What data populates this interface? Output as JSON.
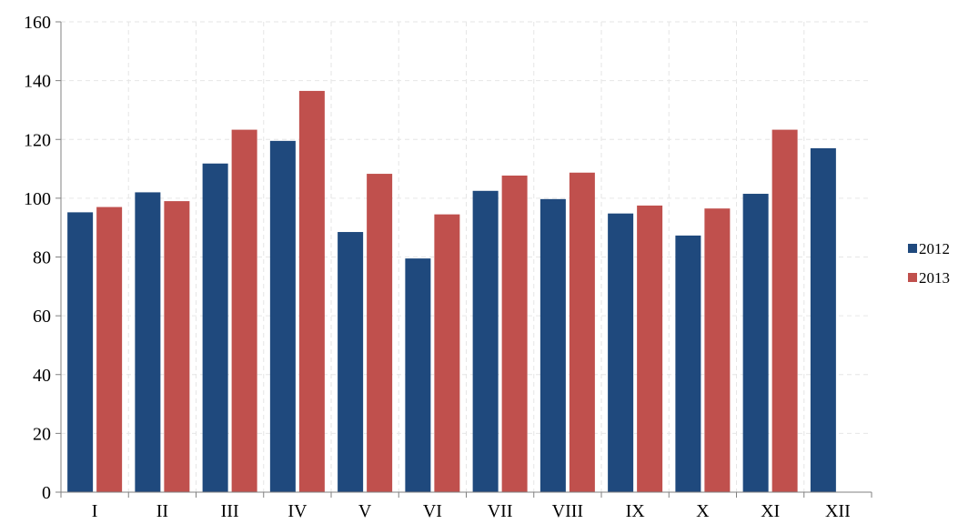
{
  "chart_data": {
    "type": "bar",
    "categories": [
      "I",
      "II",
      "III",
      "IV",
      "V",
      "VI",
      "VII",
      "VIII",
      "IX",
      "X",
      "XI",
      "XII"
    ],
    "series": [
      {
        "name": "2012",
        "color": "#1f497d",
        "values": [
          95.2,
          102.0,
          111.8,
          119.5,
          88.5,
          79.5,
          102.5,
          99.7,
          94.8,
          87.3,
          101.5,
          117.0
        ]
      },
      {
        "name": "2013",
        "color": "#c0504d",
        "values": [
          97.0,
          99.0,
          123.3,
          136.5,
          108.3,
          94.5,
          107.7,
          108.7,
          97.5,
          96.5,
          123.3,
          null
        ]
      }
    ],
    "title": "",
    "xlabel": "",
    "ylabel": "",
    "ylim": [
      0,
      160
    ],
    "yticks": [
      "0",
      "20",
      "40",
      "60",
      "80",
      "100",
      "120",
      "140",
      "160"
    ],
    "grid": true,
    "legend_position": "right"
  }
}
